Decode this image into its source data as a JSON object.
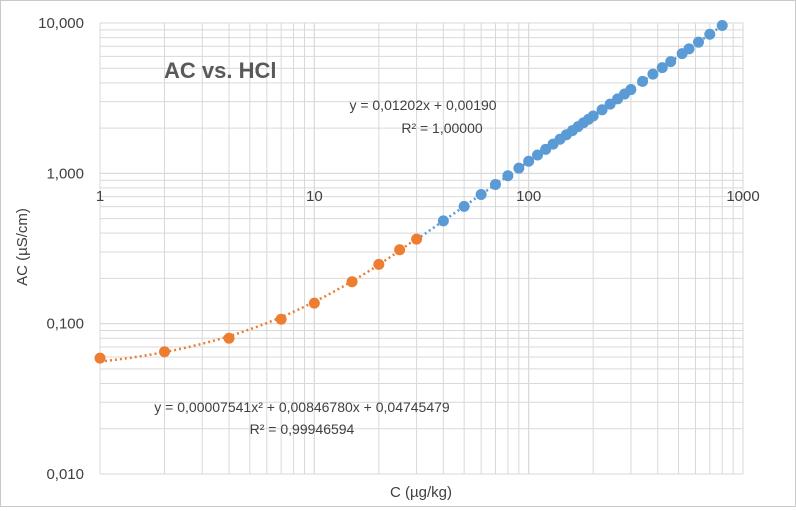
{
  "chart_data": {
    "type": "scatter",
    "title": "AC vs. HCl",
    "xlabel": "C (µg/kg)",
    "ylabel": "AC (µS/cm)",
    "x_scale": "log",
    "y_scale": "log",
    "xlim": [
      1,
      1000
    ],
    "ylim": [
      0.01,
      10
    ],
    "grid": true,
    "x_tick_labels": [
      {
        "value": 1,
        "label": "1"
      },
      {
        "value": 10,
        "label": "10"
      },
      {
        "value": 100,
        "label": "100"
      },
      {
        "value": 1000,
        "label": "1000"
      }
    ],
    "y_tick_labels": [
      {
        "value": 0.01,
        "label": "0,010"
      },
      {
        "value": 0.1,
        "label": "0,100"
      },
      {
        "value": 1,
        "label": "1,000"
      },
      {
        "value": 10,
        "label": "10,000"
      }
    ],
    "series": [
      {
        "color": "#ED7D31",
        "x": [
          1,
          2,
          4,
          7,
          10,
          15,
          20,
          25,
          30
        ],
        "y": [
          0.059,
          0.065,
          0.08,
          0.107,
          0.137,
          0.19,
          0.248,
          0.31,
          0.365
        ],
        "trendline": {
          "type": "polynomial",
          "equation": "y = 0,00007541x² + 0,00846780x + 0,04745479",
          "r2": "R² = 0,99946594",
          "x_range": [
            1,
            30
          ],
          "coefficients": [
            0.04745479,
            0.0084678,
            7.541e-05
          ]
        }
      },
      {
        "color": "#5B9BD5",
        "x": [
          40,
          50,
          60,
          70,
          80,
          90,
          100,
          110,
          120,
          130,
          140,
          150,
          160,
          170,
          180,
          190,
          200,
          220,
          240,
          260,
          280,
          300,
          340,
          380,
          420,
          460,
          520,
          560,
          620,
          700,
          800
        ],
        "y": [
          0.483,
          0.603,
          0.723,
          0.843,
          0.963,
          1.083,
          1.204,
          1.324,
          1.444,
          1.565,
          1.685,
          1.805,
          1.925,
          2.045,
          2.165,
          2.286,
          2.406,
          2.646,
          2.887,
          3.127,
          3.368,
          3.608,
          4.089,
          4.57,
          5.05,
          5.531,
          6.252,
          6.733,
          7.454,
          8.416,
          9.618
        ],
        "trendline": {
          "type": "linear",
          "equation": "y = 0,01202x + 0,00190",
          "r2": "R² = 1,00000",
          "x_range": [
            30,
            800
          ],
          "coefficients": [
            0.0019,
            0.01202
          ]
        }
      }
    ]
  }
}
